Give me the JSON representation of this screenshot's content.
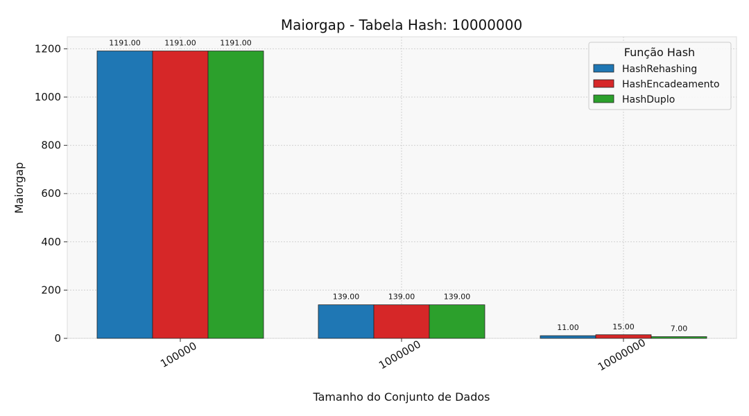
{
  "chart_data": {
    "type": "bar",
    "title": "Maiorgap - Tabela Hash: 10000000",
    "xlabel": "Tamanho do Conjunto de Dados",
    "ylabel": "Maiorgap",
    "categories": [
      "100000",
      "1000000",
      "10000000"
    ],
    "series": [
      {
        "name": "HashRehashing",
        "color": "#1f77b4",
        "values": [
          1191.0,
          139.0,
          11.0
        ],
        "labels": [
          "1191.00",
          "139.00",
          "11.00"
        ]
      },
      {
        "name": "HashEncadeamento",
        "color": "#d62728",
        "values": [
          1191.0,
          139.0,
          15.0
        ],
        "labels": [
          "1191.00",
          "139.00",
          "15.00"
        ]
      },
      {
        "name": "HashDuplo",
        "color": "#2ca02c",
        "values": [
          1191.0,
          139.0,
          7.0
        ],
        "labels": [
          "1191.00",
          "139.00",
          "7.00"
        ]
      }
    ],
    "yticks": [
      0,
      200,
      400,
      600,
      800,
      1000,
      1200
    ],
    "ylim": [
      0,
      1250
    ],
    "grid": true,
    "legend": {
      "title": "Função Hash",
      "placement": "top-right"
    }
  }
}
